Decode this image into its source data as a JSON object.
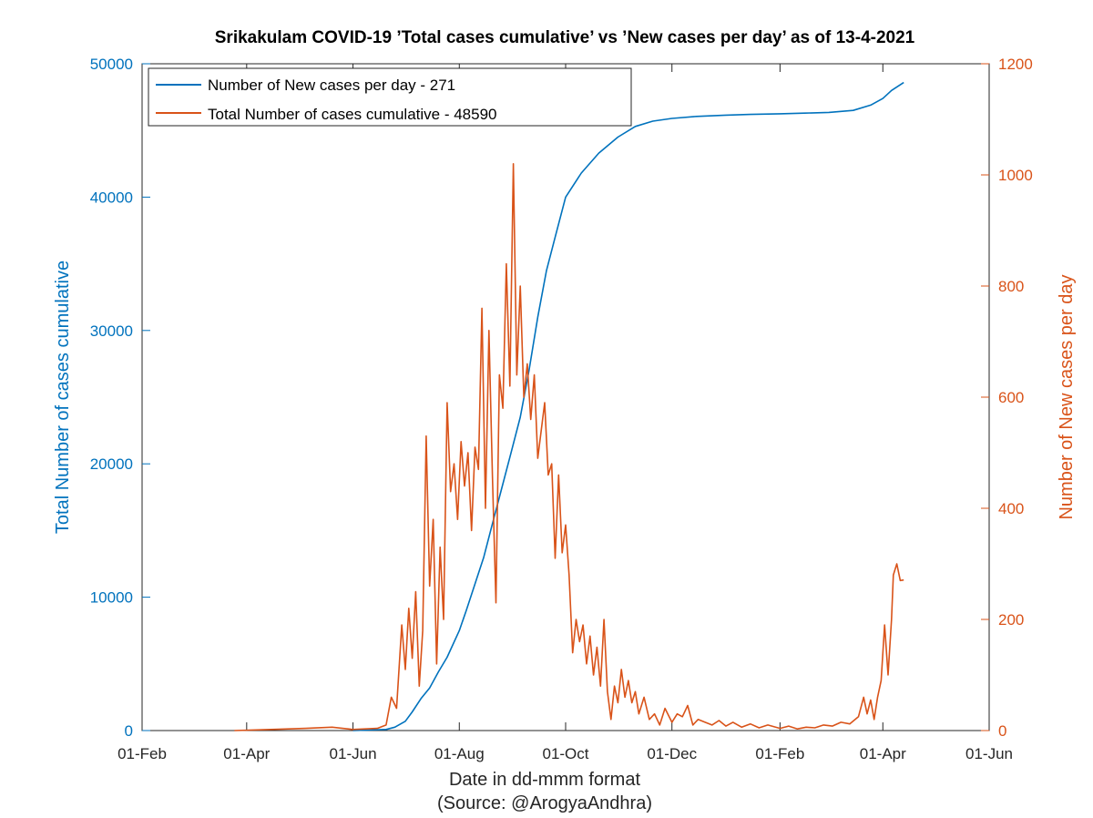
{
  "chart_data": {
    "type": "line",
    "title": "Srikakulam COVID-19 ’Total cases cumulative’ vs ’New cases per day’ as of 13-4-2021",
    "xlabel": "Date in dd-mmm format",
    "source": "(Source: @ArogyaAndhra)",
    "ylabel_left": "Total Number of cases cumulative",
    "ylabel_right": "Number of New cases per day",
    "xlim": [
      "2020-02-01",
      "2021-06-01"
    ],
    "ylim_left": [
      0,
      50000
    ],
    "ylim_right": [
      0,
      1200
    ],
    "x_ticks": [
      {
        "date": "2020-02-01",
        "label": "01-Feb"
      },
      {
        "date": "2020-04-01",
        "label": "01-Apr"
      },
      {
        "date": "2020-06-01",
        "label": "01-Jun"
      },
      {
        "date": "2020-08-01",
        "label": "01-Aug"
      },
      {
        "date": "2020-10-01",
        "label": "01-Oct"
      },
      {
        "date": "2020-12-01",
        "label": "01-Dec"
      },
      {
        "date": "2021-02-01",
        "label": "01-Feb"
      },
      {
        "date": "2021-04-01",
        "label": "01-Apr"
      },
      {
        "date": "2021-06-01",
        "label": "01-Jun"
      }
    ],
    "y_ticks_left": [
      "0",
      "10000",
      "20000",
      "30000",
      "40000",
      "50000"
    ],
    "y_ticks_right": [
      "0",
      "200",
      "400",
      "600",
      "800",
      "1000",
      "1200"
    ],
    "grid": false,
    "legend_position": "top-left",
    "colors": {
      "cumulative": "#0072BD",
      "daily": "#D95319",
      "text": "#262626",
      "axes": "#262626"
    },
    "series": [
      {
        "name": "Number of New cases per day - 271",
        "axis": "left",
        "color": "#0072BD",
        "points": [
          [
            "2020-06-01",
            0
          ],
          [
            "2020-06-20",
            80
          ],
          [
            "2020-06-25",
            250
          ],
          [
            "2020-07-01",
            700
          ],
          [
            "2020-07-05",
            1400
          ],
          [
            "2020-07-10",
            2400
          ],
          [
            "2020-07-15",
            3200
          ],
          [
            "2020-07-20",
            4400
          ],
          [
            "2020-07-25",
            5500
          ],
          [
            "2020-08-01",
            7500
          ],
          [
            "2020-08-05",
            9000
          ],
          [
            "2020-08-10",
            11000
          ],
          [
            "2020-08-15",
            13000
          ],
          [
            "2020-08-20",
            15500
          ],
          [
            "2020-08-25",
            18000
          ],
          [
            "2020-08-30",
            20500
          ],
          [
            "2020-09-05",
            23500
          ],
          [
            "2020-09-10",
            27000
          ],
          [
            "2020-09-15",
            31000
          ],
          [
            "2020-09-20",
            34500
          ],
          [
            "2020-09-25",
            37000
          ],
          [
            "2020-10-01",
            40000
          ],
          [
            "2020-10-10",
            41800
          ],
          [
            "2020-10-20",
            43300
          ],
          [
            "2020-10-31",
            44500
          ],
          [
            "2020-11-10",
            45300
          ],
          [
            "2020-11-20",
            45700
          ],
          [
            "2020-12-01",
            45900
          ],
          [
            "2020-12-15",
            46050
          ],
          [
            "2021-01-01",
            46150
          ],
          [
            "2021-01-15",
            46200
          ],
          [
            "2021-02-01",
            46250
          ],
          [
            "2021-02-15",
            46300
          ],
          [
            "2021-03-01",
            46350
          ],
          [
            "2021-03-15",
            46500
          ],
          [
            "2021-03-25",
            46900
          ],
          [
            "2021-04-01",
            47400
          ],
          [
            "2021-04-06",
            48000
          ],
          [
            "2021-04-13",
            48590
          ]
        ]
      },
      {
        "name": "Total Number of cases cumulative - 48590",
        "axis": "right",
        "color": "#D95319",
        "points": [
          [
            "2020-03-25",
            0
          ],
          [
            "2020-04-15",
            2
          ],
          [
            "2020-05-05",
            4
          ],
          [
            "2020-05-20",
            6
          ],
          [
            "2020-06-01",
            2
          ],
          [
            "2020-06-15",
            4
          ],
          [
            "2020-06-20",
            10
          ],
          [
            "2020-06-23",
            60
          ],
          [
            "2020-06-26",
            40
          ],
          [
            "2020-06-29",
            190
          ],
          [
            "2020-07-01",
            110
          ],
          [
            "2020-07-03",
            220
          ],
          [
            "2020-07-05",
            130
          ],
          [
            "2020-07-07",
            250
          ],
          [
            "2020-07-09",
            80
          ],
          [
            "2020-07-11",
            180
          ],
          [
            "2020-07-13",
            530
          ],
          [
            "2020-07-15",
            260
          ],
          [
            "2020-07-17",
            380
          ],
          [
            "2020-07-19",
            120
          ],
          [
            "2020-07-21",
            330
          ],
          [
            "2020-07-23",
            200
          ],
          [
            "2020-07-25",
            590
          ],
          [
            "2020-07-27",
            430
          ],
          [
            "2020-07-29",
            480
          ],
          [
            "2020-07-31",
            380
          ],
          [
            "2020-08-02",
            520
          ],
          [
            "2020-08-04",
            440
          ],
          [
            "2020-08-06",
            500
          ],
          [
            "2020-08-08",
            360
          ],
          [
            "2020-08-10",
            510
          ],
          [
            "2020-08-12",
            470
          ],
          [
            "2020-08-14",
            760
          ],
          [
            "2020-08-16",
            400
          ],
          [
            "2020-08-18",
            720
          ],
          [
            "2020-08-20",
            460
          ],
          [
            "2020-08-22",
            230
          ],
          [
            "2020-08-24",
            640
          ],
          [
            "2020-08-26",
            580
          ],
          [
            "2020-08-28",
            840
          ],
          [
            "2020-08-30",
            620
          ],
          [
            "2020-09-01",
            1020
          ],
          [
            "2020-09-03",
            640
          ],
          [
            "2020-09-05",
            800
          ],
          [
            "2020-09-07",
            600
          ],
          [
            "2020-09-09",
            660
          ],
          [
            "2020-09-11",
            560
          ],
          [
            "2020-09-13",
            640
          ],
          [
            "2020-09-15",
            490
          ],
          [
            "2020-09-17",
            540
          ],
          [
            "2020-09-19",
            590
          ],
          [
            "2020-09-21",
            460
          ],
          [
            "2020-09-23",
            480
          ],
          [
            "2020-09-25",
            310
          ],
          [
            "2020-09-27",
            460
          ],
          [
            "2020-09-29",
            320
          ],
          [
            "2020-10-01",
            370
          ],
          [
            "2020-10-03",
            280
          ],
          [
            "2020-10-05",
            140
          ],
          [
            "2020-10-07",
            200
          ],
          [
            "2020-10-09",
            160
          ],
          [
            "2020-10-11",
            190
          ],
          [
            "2020-10-13",
            120
          ],
          [
            "2020-10-15",
            170
          ],
          [
            "2020-10-17",
            100
          ],
          [
            "2020-10-19",
            150
          ],
          [
            "2020-10-21",
            80
          ],
          [
            "2020-10-23",
            200
          ],
          [
            "2020-10-25",
            70
          ],
          [
            "2020-10-27",
            20
          ],
          [
            "2020-10-29",
            80
          ],
          [
            "2020-10-31",
            50
          ],
          [
            "2020-11-02",
            110
          ],
          [
            "2020-11-04",
            60
          ],
          [
            "2020-11-06",
            90
          ],
          [
            "2020-11-08",
            50
          ],
          [
            "2020-11-10",
            70
          ],
          [
            "2020-11-12",
            30
          ],
          [
            "2020-11-15",
            60
          ],
          [
            "2020-11-18",
            20
          ],
          [
            "2020-11-21",
            30
          ],
          [
            "2020-11-24",
            10
          ],
          [
            "2020-11-27",
            40
          ],
          [
            "2020-12-01",
            15
          ],
          [
            "2020-12-04",
            30
          ],
          [
            "2020-12-07",
            25
          ],
          [
            "2020-12-10",
            45
          ],
          [
            "2020-12-13",
            10
          ],
          [
            "2020-12-16",
            20
          ],
          [
            "2020-12-20",
            15
          ],
          [
            "2020-12-24",
            10
          ],
          [
            "2020-12-28",
            18
          ],
          [
            "2021-01-01",
            8
          ],
          [
            "2021-01-05",
            15
          ],
          [
            "2021-01-10",
            6
          ],
          [
            "2021-01-15",
            12
          ],
          [
            "2021-01-20",
            5
          ],
          [
            "2021-01-25",
            10
          ],
          [
            "2021-02-01",
            4
          ],
          [
            "2021-02-06",
            8
          ],
          [
            "2021-02-11",
            3
          ],
          [
            "2021-02-16",
            6
          ],
          [
            "2021-02-21",
            5
          ],
          [
            "2021-02-26",
            10
          ],
          [
            "2021-03-03",
            8
          ],
          [
            "2021-03-08",
            15
          ],
          [
            "2021-03-13",
            12
          ],
          [
            "2021-03-18",
            25
          ],
          [
            "2021-03-21",
            60
          ],
          [
            "2021-03-23",
            30
          ],
          [
            "2021-03-25",
            55
          ],
          [
            "2021-03-27",
            20
          ],
          [
            "2021-03-29",
            60
          ],
          [
            "2021-03-31",
            90
          ],
          [
            "2021-04-02",
            190
          ],
          [
            "2021-04-04",
            100
          ],
          [
            "2021-04-06",
            200
          ],
          [
            "2021-04-07",
            280
          ],
          [
            "2021-04-09",
            300
          ],
          [
            "2021-04-11",
            270
          ],
          [
            "2021-04-13",
            271
          ]
        ]
      }
    ]
  }
}
